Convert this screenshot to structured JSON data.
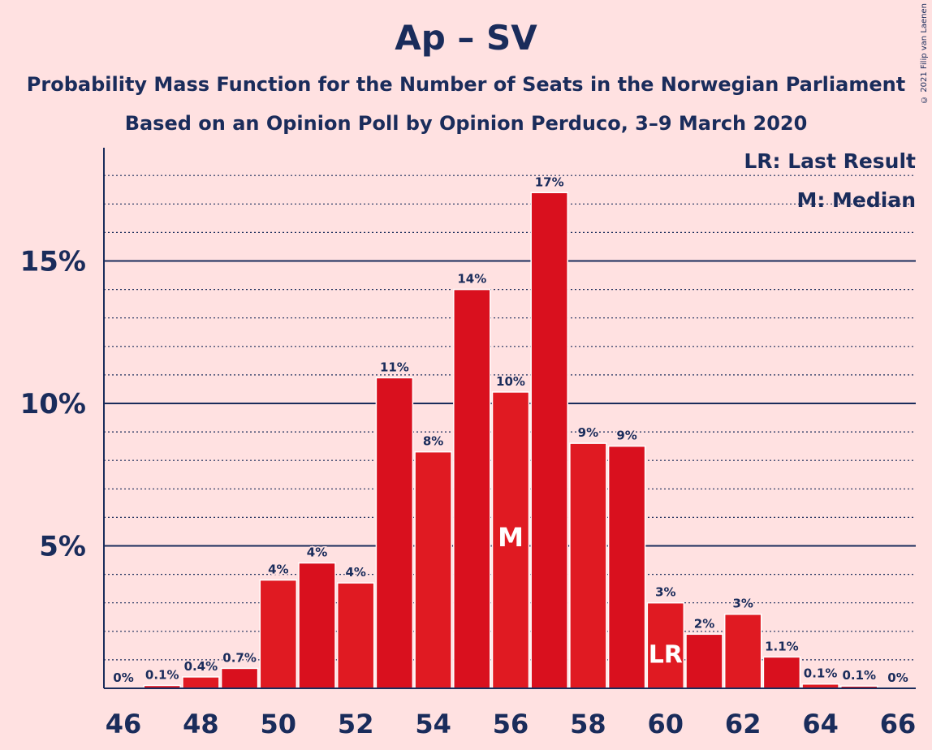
{
  "title": "Ap – SV",
  "subtitle_1": "Probability Mass Function for the Number of Seats in the Norwegian Parliament",
  "subtitle_2": "Based on an Opinion Poll by Opinion Perduco, 3–9 March 2020",
  "copyright": "© 2021 Filip van Laenen",
  "legend": {
    "last_result": "LR: Last Result",
    "median": "M: Median"
  },
  "colors": {
    "background": "#FFE1E1",
    "bar": "#E01A22",
    "bar_alt": "#D9101E",
    "axis": "#1A2C5B",
    "marker_text": "#FFFFFF"
  },
  "chart_data": {
    "type": "bar",
    "title": "Ap – SV",
    "x": [
      46,
      47,
      48,
      49,
      50,
      51,
      52,
      53,
      54,
      55,
      56,
      57,
      58,
      59,
      60,
      61,
      62,
      63,
      64,
      65,
      66
    ],
    "values": [
      0,
      0.1,
      0.4,
      0.7,
      3.8,
      4.4,
      3.7,
      10.9,
      8.3,
      14.0,
      10.4,
      17.4,
      8.6,
      8.5,
      3.0,
      1.9,
      2.6,
      1.1,
      0.15,
      0.08,
      0
    ],
    "value_labels": [
      "0%",
      "0.1%",
      "0.4%",
      "0.7%",
      "4%",
      "4%",
      "4%",
      "11%",
      "8%",
      "14%",
      "10%",
      "17%",
      "9%",
      "9%",
      "3%",
      "2%",
      "3%",
      "1.1%",
      "0.1%",
      "0.1%",
      "0%"
    ],
    "x_tick_labels": [
      "46",
      "48",
      "50",
      "52",
      "54",
      "56",
      "58",
      "60",
      "62",
      "64",
      "66"
    ],
    "y_tick_labels": [
      "5%",
      "10%",
      "15%"
    ],
    "y_ticks": [
      5,
      10,
      15
    ],
    "ylim": [
      0,
      19
    ],
    "median_seat": 56,
    "median_label": "M",
    "last_result_seat": 60,
    "last_result_label": "LR",
    "grid": "dotted every 1%, solid every 5%"
  }
}
